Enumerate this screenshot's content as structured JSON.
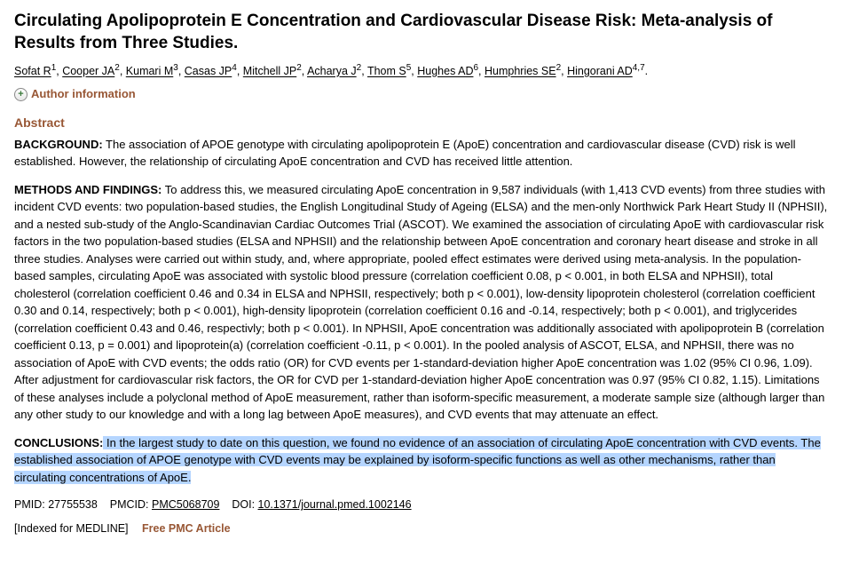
{
  "title": "Circulating Apolipoprotein E Concentration and Cardiovascular Disease Risk: Meta-analysis of Results from Three Studies.",
  "authors": [
    {
      "name": "Sofat R",
      "aff": "1"
    },
    {
      "name": "Cooper JA",
      "aff": "2"
    },
    {
      "name": "Kumari M",
      "aff": "3"
    },
    {
      "name": "Casas JP",
      "aff": "4"
    },
    {
      "name": "Mitchell JP",
      "aff": "2"
    },
    {
      "name": "Acharya J",
      "aff": "2"
    },
    {
      "name": "Thom S",
      "aff": "5"
    },
    {
      "name": "Hughes AD",
      "aff": "6"
    },
    {
      "name": "Humphries SE",
      "aff": "2"
    },
    {
      "name": "Hingorani AD",
      "aff": "4,7"
    }
  ],
  "authorInfoLabel": "Author information",
  "abstractHeading": "Abstract",
  "background": {
    "label": "BACKGROUND:",
    "text": " The association of APOE genotype with circulating apolipoprotein E (ApoE) concentration and cardiovascular disease (CVD) risk is well established. However, the relationship of circulating ApoE concentration and CVD has received little attention."
  },
  "methods": {
    "label": "METHODS AND FINDINGS:",
    "text": " To address this, we measured circulating ApoE concentration in 9,587 individuals (with 1,413 CVD events) from three studies with incident CVD events: two population-based studies, the English Longitudinal Study of Ageing (ELSA) and the men-only Northwick Park Heart Study II (NPHSII), and a nested sub-study of the Anglo-Scandinavian Cardiac Outcomes Trial (ASCOT). We examined the association of circulating ApoE with cardiovascular risk factors in the two population-based studies (ELSA and NPHSII) and the relationship between ApoE concentration and coronary heart disease and stroke in all three studies. Analyses were carried out within study, and, where appropriate, pooled effect estimates were derived using meta-analysis. In the population-based samples, circulating ApoE was associated with systolic blood pressure (correlation coefficient 0.08, p < 0.001, in both ELSA and NPHSII), total cholesterol (correlation coefficient 0.46 and 0.34 in ELSA and NPHSII, respectively; both p < 0.001), low-density lipoprotein cholesterol (correlation coefficient 0.30 and 0.14, respectively; both p < 0.001), high-density lipoprotein (correlation coefficient 0.16 and -0.14, respectively; both p < 0.001), and triglycerides (correlation coefficient 0.43 and 0.46, respectivly; both p < 0.001). In NPHSII, ApoE concentration was additionally associated with apolipoprotein B (correlation coefficient 0.13, p = 0.001) and lipoprotein(a) (correlation coefficient -0.11, p < 0.001). In the pooled analysis of ASCOT, ELSA, and NPHSII, there was no association of ApoE with CVD events; the odds ratio (OR) for CVD events per 1-standard-deviation higher ApoE concentration was 1.02 (95% CI 0.96, 1.09). After adjustment for cardiovascular risk factors, the OR for CVD per 1-standard-deviation higher ApoE concentration was 0.97 (95% CI 0.82, 1.15). Limitations of these analyses include a polyclonal method of ApoE measurement, rather than isoform-specific measurement, a moderate sample size (although larger than any other study to our knowledge and with a long lag between ApoE measures), and CVD events that may attenuate an effect."
  },
  "conclusions": {
    "label": "CONCLUSIONS:",
    "highlighted": " In the largest study to date on this question, we found no evidence of an association of circulating ApoE concentration with CVD events. The established association of APOE genotype with CVD events may be explained by isoform-specific functions as well as other mechanisms, rather than circulating concentrations of ApoE.",
    "tail": ""
  },
  "ids": {
    "pmidLabel": "PMID:",
    "pmid": "27755538",
    "pmcidLabel": "PMCID:",
    "pmcid": "PMC5068709",
    "doiLabel": "DOI:",
    "doi": "10.1371/journal.pmed.1002146"
  },
  "footer": {
    "indexed": "[Indexed for MEDLINE]",
    "free": "Free PMC Article"
  }
}
